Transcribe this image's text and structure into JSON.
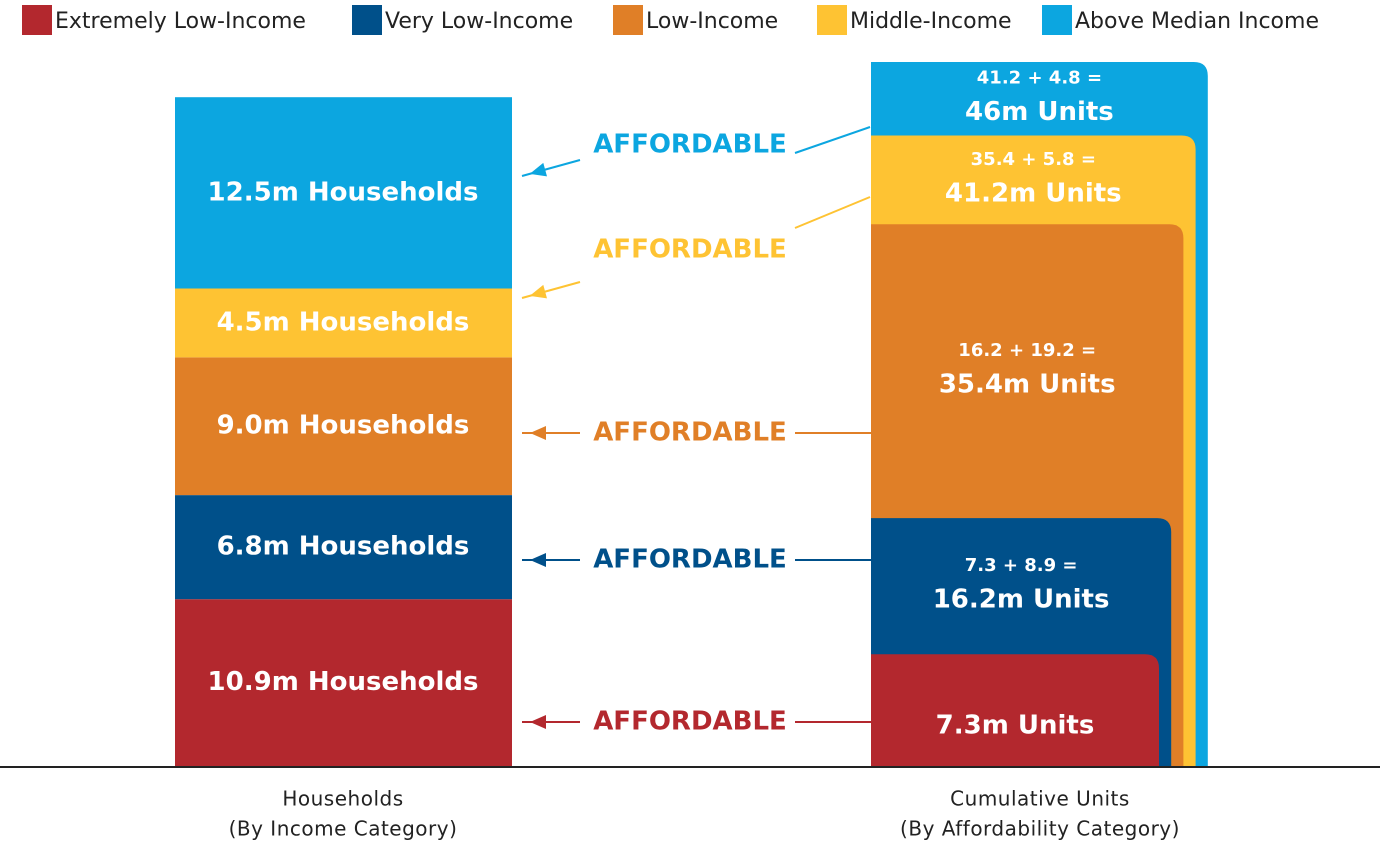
{
  "chart_data": {
    "type": "stacked_nested_bar",
    "categories": [
      "Households",
      "Cumulative Units"
    ],
    "category_subtitles": [
      "(By Income Category)",
      "(By Affordability Category)"
    ],
    "bar_modes": [
      "stacked",
      "nested"
    ],
    "annotation": "AFFORDABLE",
    "series": [
      {
        "name": "Extremely Low-Income",
        "color": "#b3282e",
        "values": [
          10.9,
          7.3
        ],
        "value_labels": [
          "10.9m Households",
          "7.3m Units"
        ]
      },
      {
        "name": "Very Low-Income",
        "color": "#00508a",
        "values": [
          6.8,
          16.2
        ],
        "value_labels": [
          "6.8m Households",
          "16.2m Units"
        ],
        "sum_label": "7.3 + 8.9 ="
      },
      {
        "name": "Low-Income",
        "color": "#e07f27",
        "values": [
          9.0,
          35.4
        ],
        "value_labels": [
          "9.0m Households",
          "35.4m Units"
        ],
        "sum_label": "16.2 + 19.2 ="
      },
      {
        "name": "Middle-Income",
        "color": "#fec333",
        "values": [
          4.5,
          41.2
        ],
        "value_labels": [
          "4.5m Households",
          "41.2m Units"
        ],
        "sum_label": "35.4 + 5.8 ="
      },
      {
        "name": "Above Median Income",
        "color": "#0ca6e0",
        "values": [
          12.5,
          46
        ],
        "value_labels": [
          "12.5m Households",
          "46m Units"
        ],
        "sum_label": "41.2 + 4.8 ="
      }
    ]
  }
}
